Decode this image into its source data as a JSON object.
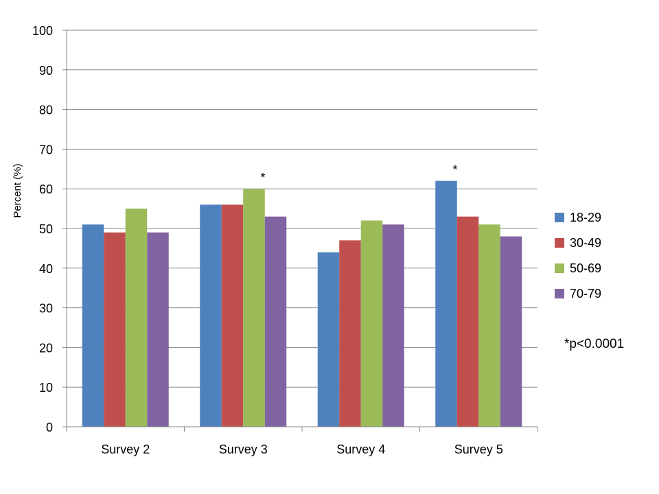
{
  "chart_data": {
    "type": "bar",
    "title": "",
    "xlabel": "",
    "ylabel": "Percent (%)",
    "ylim": [
      0,
      100
    ],
    "yticks": [
      0,
      10,
      20,
      30,
      40,
      50,
      60,
      70,
      80,
      90,
      100
    ],
    "grid": true,
    "legend_position": "right",
    "categories": [
      "Survey 2",
      "Survey 3",
      "Survey 4",
      "Survey 5"
    ],
    "series": [
      {
        "name": "18-29",
        "color": "#4F81BD",
        "values": [
          51,
          56,
          44,
          62
        ]
      },
      {
        "name": "30-49",
        "color": "#C0504D",
        "values": [
          49,
          56,
          47,
          53
        ]
      },
      {
        "name": "50-69",
        "color": "#9BBB59",
        "values": [
          55,
          60,
          52,
          51
        ]
      },
      {
        "name": "70-79",
        "color": "#8064A2",
        "values": [
          49,
          53,
          51,
          48
        ]
      }
    ],
    "annotations": [
      {
        "text": "*",
        "category": "Survey 3",
        "series": "50-69"
      },
      {
        "text": "*",
        "category": "Survey 5",
        "series": "18-29"
      }
    ],
    "footnote": "*p<0.0001"
  }
}
